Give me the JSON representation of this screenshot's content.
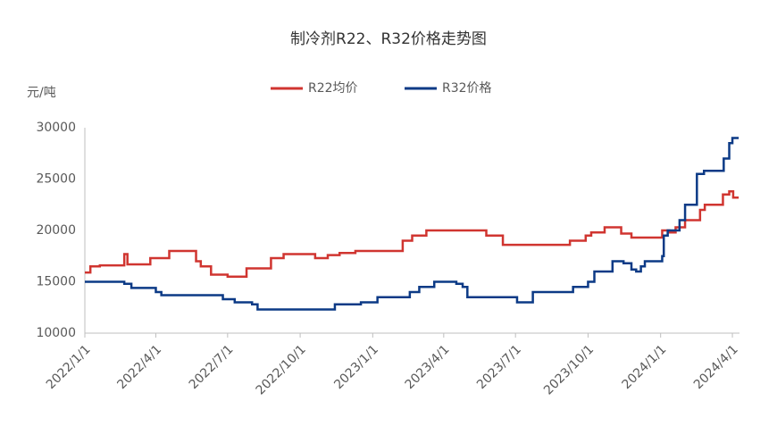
{
  "chart_data": {
    "type": "line",
    "step": true,
    "title": "制冷剂R22、R32价格走势图",
    "y_label": "元/吨",
    "ylim": [
      10000,
      30000
    ],
    "yticks": [
      10000,
      15000,
      20000,
      25000,
      30000
    ],
    "xlim": [
      "2022/1/1",
      "2024/4/10"
    ],
    "xticks": [
      "2022/1/1",
      "2022/4/1",
      "2022/7/1",
      "2022/10/1",
      "2023/1/1",
      "2023/4/1",
      "2023/7/1",
      "2023/10/1",
      "2024/1/1",
      "2024/4/1"
    ],
    "series": [
      {
        "name": "R22均价",
        "color": "#d03530",
        "x": [
          "2022/1/1",
          "2022/1/8",
          "2022/1/20",
          "2022/2/20",
          "2022/2/24",
          "2022/3/25",
          "2022/4/18",
          "2022/5/22",
          "2022/5/28",
          "2022/6/10",
          "2022/7/1",
          "2022/7/25",
          "2022/8/25",
          "2022/9/10",
          "2022/10/20",
          "2022/11/5",
          "2022/11/20",
          "2022/12/10",
          "2023/2/8",
          "2023/2/20",
          "2023/3/10",
          "2023/5/25",
          "2023/6/15",
          "2023/9/8",
          "2023/9/28",
          "2023/10/5",
          "2023/10/22",
          "2023/11/12",
          "2023/11/25",
          "2024/1/3",
          "2024/1/12",
          "2024/1/20",
          "2024/2/1",
          "2024/2/20",
          "2024/2/26",
          "2024/3/20",
          "2024/3/28",
          "2024/4/2",
          "2024/4/9"
        ],
        "values": [
          15900,
          16500,
          16600,
          17700,
          16700,
          17300,
          18000,
          17000,
          16500,
          15700,
          15500,
          16300,
          17300,
          17700,
          17300,
          17600,
          17800,
          18000,
          19000,
          19500,
          20000,
          19500,
          18600,
          19000,
          19500,
          19800,
          20300,
          19700,
          19300,
          20000,
          19800,
          20300,
          21000,
          22000,
          22500,
          23500,
          23800,
          23200,
          23200
        ]
      },
      {
        "name": "R32价格",
        "color": "#0c3a86",
        "x": [
          "2022/1/1",
          "2022/2/20",
          "2022/3/1",
          "2022/4/1",
          "2022/4/8",
          "2022/6/25",
          "2022/7/10",
          "2022/8/1",
          "2022/8/8",
          "2022/11/14",
          "2022/12/17",
          "2023/1/7",
          "2023/2/17",
          "2023/3/1",
          "2023/3/20",
          "2023/4/17",
          "2023/4/25",
          "2023/5/1",
          "2023/7/3",
          "2023/7/23",
          "2023/9/12",
          "2023/10/1",
          "2023/10/9",
          "2023/11/1",
          "2023/11/15",
          "2023/11/25",
          "2023/12/1",
          "2023/12/7",
          "2023/12/12",
          "2024/1/3",
          "2024/1/5",
          "2024/1/10",
          "2024/1/25",
          "2024/2/1",
          "2024/2/16",
          "2024/2/25",
          "2024/3/21",
          "2024/3/28",
          "2024/4/1",
          "2024/4/9"
        ],
        "values": [
          15000,
          14800,
          14400,
          14000,
          13700,
          13300,
          13000,
          12800,
          12300,
          12800,
          13000,
          13500,
          14000,
          14500,
          15000,
          14800,
          14500,
          13500,
          13000,
          14000,
          14500,
          15000,
          16000,
          17000,
          16800,
          16200,
          16000,
          16500,
          17000,
          17500,
          19500,
          20000,
          21000,
          22500,
          25500,
          25800,
          27000,
          28500,
          29000,
          29000
        ]
      }
    ]
  }
}
